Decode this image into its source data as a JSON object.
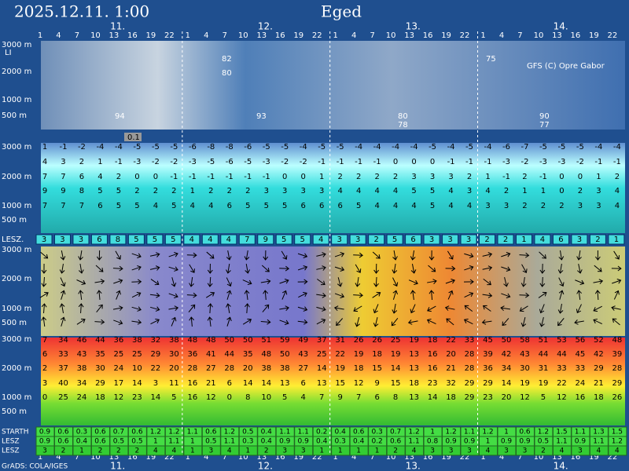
{
  "header": {
    "date": "2025.12.11. 1:00",
    "location": "Eged",
    "credit": "GFS (C) Opre Gabor",
    "grads": "GrADS: COLA/IGES"
  },
  "hours": [
    1,
    4,
    7,
    10,
    13,
    16,
    19,
    22,
    1,
    4,
    7,
    10,
    13,
    16,
    19,
    22,
    1,
    4,
    7,
    10,
    13,
    16,
    19,
    22,
    1,
    4,
    7,
    10,
    13,
    16,
    19,
    22
  ],
  "days": [
    "11.",
    "12.",
    "13.",
    "14."
  ],
  "cloud": {
    "heights": [
      "3000 m",
      "2000 m",
      "1000 m",
      "500 m"
    ],
    "li": "LI",
    "marker": "0.1",
    "labels": [
      "82",
      "80",
      "94",
      "93",
      "80",
      "78",
      "75",
      "90",
      "77"
    ]
  },
  "temp": {
    "heights": [
      "3000 m",
      "2000 m",
      "1000 m",
      "500 m"
    ],
    "rows": [
      [
        1,
        -1,
        -2,
        -4,
        -4,
        -5,
        -5,
        -5,
        -6,
        -8,
        -8,
        -6,
        -5,
        -5,
        -4,
        -5,
        -5,
        -4,
        -4,
        -4,
        -4,
        -5,
        -4,
        -5,
        -4,
        -6,
        -7,
        -5,
        -5,
        -5,
        -4,
        -4
      ],
      [
        4,
        3,
        2,
        1,
        -1,
        -3,
        -2,
        -2,
        -3,
        -5,
        -6,
        -5,
        -3,
        -2,
        -2,
        -1,
        -1,
        -1,
        -1,
        0,
        0,
        0,
        -1,
        -1,
        -1,
        -3,
        -2,
        -3,
        -3,
        -2,
        -1,
        -1
      ],
      [
        7,
        7,
        6,
        4,
        2,
        0,
        0,
        -1,
        -1,
        -1,
        -1,
        -1,
        -1,
        0,
        0,
        1,
        2,
        2,
        2,
        2,
        3,
        3,
        3,
        2,
        1,
        -1,
        2,
        -1,
        0,
        0,
        1,
        2
      ],
      [
        9,
        9,
        8,
        5,
        5,
        2,
        2,
        2,
        1,
        2,
        2,
        2,
        3,
        3,
        3,
        3,
        4,
        4,
        4,
        4,
        5,
        5,
        4,
        3,
        4,
        2,
        1,
        1,
        0,
        2,
        3,
        4
      ],
      [
        7,
        7,
        7,
        6,
        5,
        5,
        4,
        5,
        4,
        4,
        6,
        5,
        5,
        5,
        6,
        6,
        6,
        5,
        4,
        4,
        4,
        5,
        4,
        4,
        3,
        3,
        2,
        2,
        2,
        3,
        3,
        4
      ]
    ]
  },
  "lesz": {
    "label": "LESZ.",
    "values": [
      3,
      3,
      3,
      6,
      8,
      5,
      5,
      5,
      4,
      4,
      4,
      7,
      9,
      5,
      5,
      4,
      3,
      3,
      2,
      5,
      6,
      3,
      3,
      3,
      2,
      2,
      1,
      4,
      6,
      3,
      2,
      1
    ]
  },
  "wind": {
    "heights": [
      "3000 m",
      "2000 m",
      "1000 m",
      "500 m"
    ]
  },
  "hum": {
    "heights": [
      "3000 m",
      "2000 m",
      "1000 m",
      "500 m"
    ],
    "rows": [
      [
        7,
        34,
        46,
        44,
        36,
        38,
        32,
        38,
        48,
        48,
        50,
        50,
        51,
        59,
        49,
        37,
        31,
        26,
        26,
        25,
        19,
        18,
        22,
        33,
        45,
        50,
        58,
        51,
        53,
        56,
        52,
        48
      ],
      [
        6,
        33,
        43,
        35,
        25,
        25,
        29,
        30,
        36,
        41,
        44,
        35,
        48,
        50,
        43,
        25,
        22,
        19,
        18,
        19,
        13,
        16,
        20,
        28,
        39,
        42,
        43,
        44,
        44,
        45,
        42,
        39
      ],
      [
        2,
        37,
        38,
        30,
        24,
        10,
        22,
        20,
        28,
        27,
        28,
        20,
        38,
        38,
        27,
        14,
        19,
        18,
        15,
        14,
        13,
        16,
        21,
        28,
        36,
        34,
        30,
        31,
        33,
        33,
        29,
        28
      ],
      [
        3,
        40,
        34,
        29,
        17,
        14,
        3,
        11,
        16,
        21,
        6,
        14,
        14,
        13,
        6,
        13,
        15,
        12,
        9,
        15,
        18,
        23,
        32,
        29,
        29,
        14,
        19,
        19,
        22,
        24,
        21,
        29
      ],
      [
        0,
        25,
        24,
        18,
        12,
        23,
        14,
        5,
        16,
        12,
        0,
        8,
        10,
        5,
        4,
        7,
        9,
        7,
        6,
        8,
        13,
        14,
        18,
        29,
        23,
        20,
        12,
        5,
        12,
        16,
        18,
        26
      ]
    ]
  },
  "bottom": {
    "labels": [
      "STARTH",
      "LESZ",
      "LESZ"
    ],
    "rows": [
      [
        0.9,
        0.6,
        0.3,
        0.6,
        0.7,
        0.6,
        1.2,
        1.2,
        1.1,
        0.6,
        1.2,
        0.5,
        0.4,
        1.1,
        1.1,
        0.2,
        0.4,
        0.6,
        0.3,
        0.7,
        1.2,
        1,
        1.2,
        1.1,
        1.2,
        1,
        0.6,
        1.2,
        1.5,
        1.1,
        1.3,
        1.5
      ],
      [
        0.9,
        0.6,
        0.4,
        0.6,
        0.5,
        0.5,
        1,
        1.1,
        1,
        0.5,
        1.1,
        0.3,
        0.4,
        0.9,
        0.9,
        0.4,
        0.3,
        0.4,
        0.2,
        0.6,
        1.1,
        0.8,
        0.9,
        0.9,
        1,
        0.9,
        0.9,
        0.5,
        1.1,
        0.9,
        1.1,
        1.2
      ],
      [
        3,
        2,
        1,
        2,
        2,
        2,
        4,
        4,
        1,
        3,
        4,
        1,
        2,
        3,
        3,
        1,
        1,
        1,
        1,
        2,
        4,
        3,
        3,
        3,
        4,
        3,
        3,
        2,
        4,
        3,
        4,
        4
      ]
    ]
  }
}
